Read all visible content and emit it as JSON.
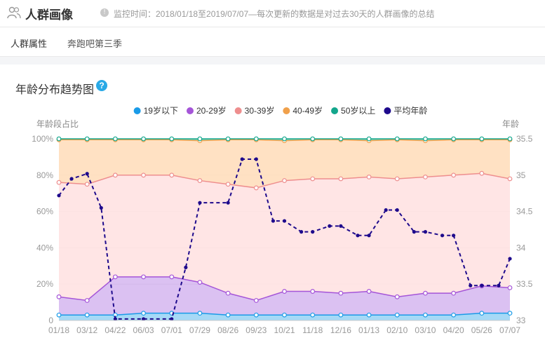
{
  "header": {
    "title": "人群画像",
    "monitor_text": "监控时间：2018/01/18至2019/07/07—每次更新的数据是对过去30天的人群画像的总结"
  },
  "tabs": [
    {
      "label": "人群属性"
    },
    {
      "label": "奔跑吧第三季"
    }
  ],
  "chart_title": "年龄分布趋势图",
  "chart_data": {
    "type": "area",
    "stacked": true,
    "ylabel": "年龄段占比",
    "y2label": "年龄",
    "ylim": [
      0,
      100
    ],
    "y2lim": [
      33,
      35.5
    ],
    "yticks": [
      "0",
      "20%",
      "40%",
      "60%",
      "80%",
      "100%"
    ],
    "y2ticks": [
      "33",
      "33.5",
      "34",
      "34.5",
      "35",
      "35.5"
    ],
    "xticks": [
      "01/18",
      "03/12",
      "04/22",
      "06/03",
      "07/01",
      "07/29",
      "08/26",
      "09/23",
      "10/21",
      "11/18",
      "12/16",
      "01/13",
      "02/10",
      "03/10",
      "04/20",
      "05/26",
      "07/07"
    ],
    "legend_position": "top",
    "series": [
      {
        "name": "19岁以下",
        "color": "#1a9be8",
        "values": [
          3,
          3,
          3,
          4,
          4,
          4,
          3,
          3,
          3,
          3,
          3,
          3,
          3,
          3,
          3,
          4,
          4
        ]
      },
      {
        "name": "20-29岁",
        "color": "#a555d8",
        "values": [
          13,
          11,
          24,
          24,
          24,
          21,
          15,
          11,
          16,
          16,
          15,
          16,
          13,
          15,
          15,
          19,
          18
        ]
      },
      {
        "name": "30-39岁",
        "color": "#ee8e8e",
        "values": [
          76,
          75,
          80,
          80,
          80,
          77,
          75,
          73,
          77,
          78,
          78,
          79,
          78,
          79,
          80,
          81,
          78
        ]
      },
      {
        "name": "40-49岁",
        "color": "#f0a04b",
        "values": [
          99.5,
          99.5,
          99.5,
          99.5,
          99.5,
          99,
          99.5,
          99.5,
          99,
          99.5,
          99.5,
          99,
          99.5,
          99,
          99.5,
          99.5,
          99.5
        ]
      },
      {
        "name": "50岁以上",
        "color": "#13a68c",
        "values": [
          100,
          100,
          100,
          100,
          100,
          100,
          100,
          100,
          100,
          100,
          100,
          100,
          100,
          100,
          100,
          100,
          100
        ]
      }
    ],
    "line_series": {
      "name": "平均年龄",
      "color": "#1e0a8c",
      "axis": "right",
      "points": [
        [
          0,
          34.72
        ],
        [
          0.45,
          34.95
        ],
        [
          1.0,
          35.02
        ],
        [
          1.5,
          34.55
        ],
        [
          2.0,
          33.02
        ],
        [
          3.0,
          33.02
        ],
        [
          4.0,
          33.02
        ],
        [
          4.5,
          33.73
        ],
        [
          5.0,
          34.62
        ],
        [
          6.0,
          34.62
        ],
        [
          6.5,
          35.22
        ],
        [
          7.0,
          35.22
        ],
        [
          7.6,
          34.37
        ],
        [
          8.0,
          34.37
        ],
        [
          8.6,
          34.22
        ],
        [
          9.0,
          34.22
        ],
        [
          9.6,
          34.3
        ],
        [
          10.0,
          34.3
        ],
        [
          10.6,
          34.17
        ],
        [
          11.0,
          34.17
        ],
        [
          11.6,
          34.52
        ],
        [
          12.0,
          34.52
        ],
        [
          12.6,
          34.22
        ],
        [
          13.0,
          34.22
        ],
        [
          13.6,
          34.17
        ],
        [
          14.0,
          34.17
        ],
        [
          14.6,
          33.48
        ],
        [
          15.0,
          33.48
        ],
        [
          15.6,
          33.48
        ],
        [
          16.0,
          33.85
        ]
      ]
    }
  }
}
